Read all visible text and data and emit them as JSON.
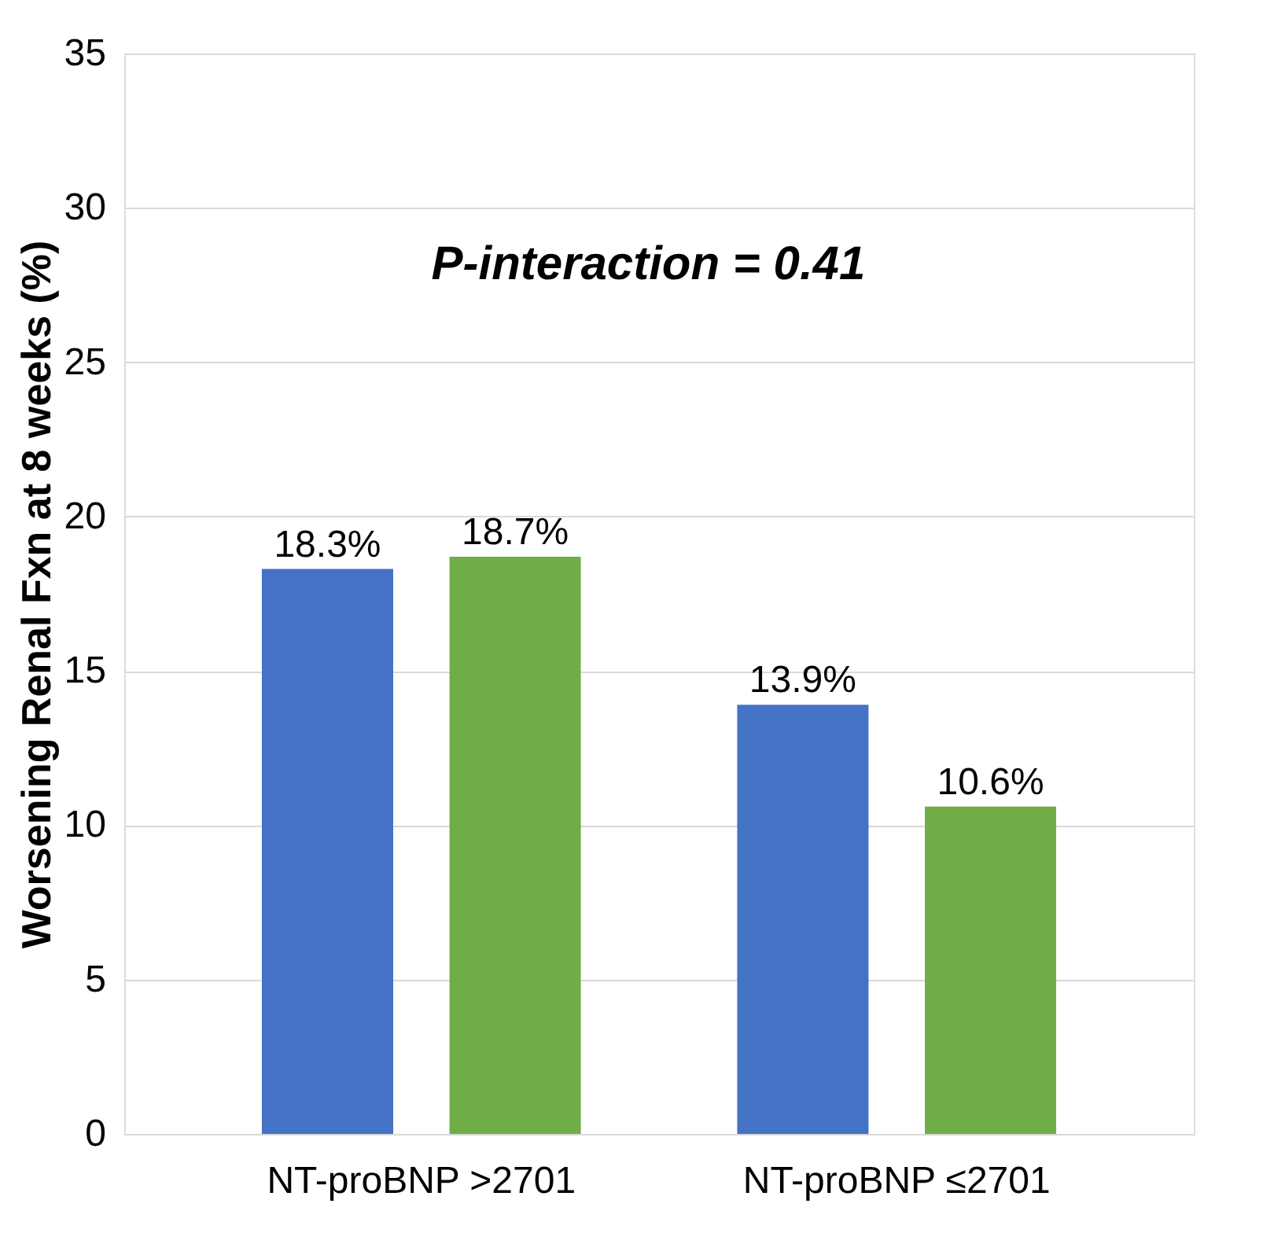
{
  "chart_data": {
    "type": "bar",
    "ylabel": "Worsening Renal Fxn at 8 weeks (%)",
    "categories": [
      "NT-proBNP >2701",
      "NT-proBNP ≤2701"
    ],
    "series": [
      {
        "color": "#4472c4",
        "values": [
          18.3,
          13.9
        ],
        "value_labels": [
          "18.3%",
          "13.9%"
        ]
      },
      {
        "color": "#70ad47",
        "values": [
          18.7,
          10.6
        ],
        "value_labels": [
          "18.7%",
          "10.6%"
        ]
      }
    ],
    "ylim": [
      0,
      35
    ],
    "yticks": [
      0,
      5,
      10,
      15,
      20,
      25,
      30,
      35
    ],
    "grid": "y",
    "legend": false,
    "annotations": [
      "P-interaction = 0.41"
    ]
  }
}
